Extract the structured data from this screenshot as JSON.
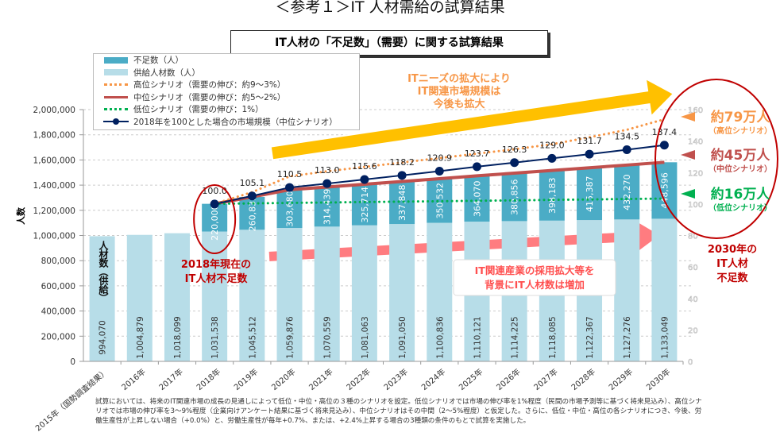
{
  "page": {
    "title": "＜参考１＞IT 人材需給の試算結果",
    "box_title": "IT人材の「不足数」（需要）に関する試算結果",
    "footnote": "試算においては、将来のIT関連市場の成長の見通しによって低位・中位・高位の３種のシナリオを設定。低位シナリオでは市場の伸び率を1%程度（民間の市場予測等に基づく将来見込み）、高位シナリオでは市場の伸び率を3～9%程度（企業向けアンケート結果に基づく将来見込み）、中位シナリオはその中間（2～5%程度）と仮定した。さらに、低位・中位・高位の各シナリオにつき、今後、労働生産性が上昇しない場合（+0.0%）と、労働生産性が毎年+0.7%、または、+2.4%上昇する場合の3種類の条件のもとで試算を実施した。"
  },
  "annotations": {
    "supply_label": "人材数（供給）",
    "shortage_2018": [
      "2018年現在の",
      "IT人材不足数"
    ],
    "market_growth": [
      "ITニーズの拡大により",
      "IT関連市場規模は",
      "今後も拡大"
    ],
    "supply_growth": [
      "IT関連産業の採用拡大等を",
      "背景にIT人材数は増加"
    ],
    "high": {
      "value": "約79万人",
      "sub": "（高位シナリオ）"
    },
    "mid": {
      "value": "約45万人",
      "sub": "（中位シナリオ）"
    },
    "low": {
      "value": "約16万人",
      "sub": "（低位シナリオ）"
    },
    "shortage_2030": [
      "2030年の",
      "IT人材",
      "不足数"
    ]
  },
  "colors": {
    "shortage": "#4bacc6",
    "supply": "#b7dde8",
    "high": "#f79646",
    "mid": "#c0504d",
    "low": "#00b050",
    "market": "#002060",
    "accent_red": "#c00000",
    "arrow_yellow": "#ffc000",
    "arrow_pink": "#ff7c80"
  },
  "chart_data": {
    "type": "bar",
    "stacked": true,
    "ylabel": "人数",
    "ylim": [
      0,
      2000000
    ],
    "y2lim": [
      0,
      160
    ],
    "yticks": [
      "0",
      "200,000",
      "400,000",
      "600,000",
      "800,000",
      "1,000,000",
      "1,200,000",
      "1,400,000",
      "1,600,000",
      "1,800,000",
      "2,000,000"
    ],
    "y2ticks": [
      "0",
      "20",
      "40",
      "60",
      "80",
      "100",
      "120",
      "140",
      "160"
    ],
    "grid": true,
    "legend_position": "top-left",
    "categories": [
      "2015年（国勢調査結果）",
      "2016年",
      "2017年",
      "2018年",
      "2019年",
      "2020年",
      "2021年",
      "2022年",
      "2023年",
      "2024年",
      "2025年",
      "2026年",
      "2027年",
      "2028年",
      "2029年",
      "2030年"
    ],
    "series": [
      {
        "name": "供給人材数（人）",
        "type": "bar",
        "values": [
          994070,
          1004879,
          1018099,
          1031538,
          1045512,
          1059876,
          1070559,
          1081063,
          1091050,
          1100836,
          1110121,
          1114225,
          1118085,
          1122367,
          1127276,
          1133049
        ],
        "labels": [
          "994,070",
          "1,004,879",
          "1,018,099",
          "1,031,538",
          "1,045,512",
          "1,059,876",
          "1,070,559",
          "1,081,063",
          "1,091,050",
          "1,100,836",
          "1,110,121",
          "1,114,225",
          "1,118,085",
          "1,122,367",
          "1,127,276",
          "1,133,049"
        ]
      },
      {
        "name": "不足数（人）",
        "type": "bar",
        "values": [
          null,
          null,
          null,
          220000,
          260835,
          303680,
          314439,
          325714,
          337848,
          350532,
          364070,
          380856,
          398183,
          415387,
          432270,
          448596
        ],
        "labels": [
          "",
          "",
          "",
          "220,000",
          "260,835",
          "303,680",
          "314,439",
          "325,714",
          "337,848",
          "350,532",
          "364,070",
          "380,856",
          "398,183",
          "415,387",
          "432,270",
          "448,596"
        ]
      },
      {
        "name": "高位シナリオ（需要の伸び：約9～3%）",
        "type": "line",
        "style": "dotted",
        "values": [
          null,
          null,
          null,
          1251538,
          1344000,
          1470000,
          1510000,
          1545000,
          1580000,
          1615000,
          1650000,
          1685000,
          1725000,
          1780000,
          1840000,
          1923049
        ]
      },
      {
        "name": "中位シナリオ（需要の伸び：約5～2%）",
        "type": "line",
        "style": "solid",
        "values": [
          null,
          null,
          null,
          1251538,
          1306347,
          1363556,
          1384998,
          1406777,
          1428898,
          1451368,
          1474191,
          1495081,
          1516268,
          1537754,
          1559546,
          1581645
        ]
      },
      {
        "name": "低位シナリオ（需要の伸び：1%）",
        "type": "line",
        "style": "dotted",
        "values": [
          null,
          null,
          null,
          1251538,
          1255000,
          1259000,
          1262000,
          1266000,
          1269000,
          1272000,
          1276000,
          1279000,
          1283000,
          1286000,
          1290000,
          1293049
        ]
      },
      {
        "name": "2018年を100とした場合の市場規模（中位シナリオ）",
        "type": "line",
        "axis": "y2",
        "markers": true,
        "values": [
          null,
          null,
          null,
          100.0,
          105.1,
          110.5,
          113.0,
          115.6,
          118.2,
          120.9,
          123.7,
          126.3,
          129.0,
          131.7,
          134.5,
          137.4
        ],
        "labels": [
          "",
          "",
          "",
          "100.0",
          "105.1",
          "110.5",
          "113.0",
          "115.6",
          "118.2",
          "120.9",
          "123.7",
          "126.3",
          "129.0",
          "131.7",
          "134.5",
          "137.4"
        ]
      }
    ]
  }
}
